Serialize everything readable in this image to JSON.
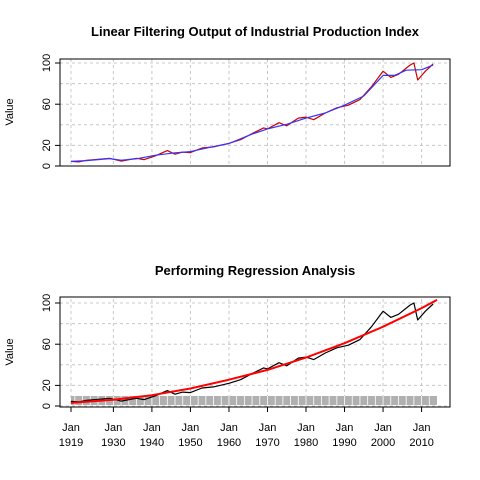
{
  "chart_data": [
    {
      "type": "line",
      "title": "Linear Filtering Output of  Industrial Production Index",
      "ylabel": "Value",
      "xlabel": "",
      "xlim": [
        1919,
        2014
      ],
      "ylim": [
        0,
        104
      ],
      "yticks": [
        0,
        20,
        60,
        100
      ],
      "grid": true,
      "series": [
        {
          "color": "#cc0000",
          "x": [
            1919,
            1921,
            1923,
            1926,
            1929,
            1932,
            1936,
            1938,
            1941,
            1944,
            1946,
            1948,
            1950,
            1953,
            1956,
            1960,
            1963,
            1966,
            1969,
            1970,
            1973,
            1975,
            1978,
            1980,
            1982,
            1985,
            1988,
            1991,
            1994,
            1997,
            2000,
            2002,
            2004,
            2007,
            2008,
            2009,
            2011,
            2013
          ],
          "values": [
            4.5,
            4.0,
            5.5,
            6.5,
            7.5,
            4.8,
            7.5,
            6.2,
            10.0,
            15.0,
            11.5,
            13.5,
            13.0,
            17.5,
            18.5,
            22.0,
            25.5,
            31.5,
            37.0,
            36.0,
            42.0,
            39.0,
            46.5,
            47.5,
            45.0,
            51.5,
            56.5,
            59.0,
            64.5,
            77.0,
            92.0,
            86.0,
            89.0,
            98.0,
            100.0,
            83.5,
            92.0,
            99.0
          ]
        },
        {
          "color": "#3333ff",
          "x": [
            1919,
            1923,
            1929,
            1932,
            1936,
            1941,
            1946,
            1950,
            1956,
            1960,
            1966,
            1970,
            1975,
            1980,
            1985,
            1990,
            1995,
            2000,
            2003,
            2006,
            2010,
            2013
          ],
          "values": [
            4.5,
            5.2,
            7.2,
            5.6,
            7.0,
            10.5,
            12.8,
            14.0,
            18.8,
            21.8,
            31.0,
            36.0,
            40.5,
            46.5,
            51.5,
            59.0,
            68.0,
            88.0,
            88.0,
            93.0,
            93.5,
            98.0
          ]
        }
      ]
    },
    {
      "type": "line",
      "title": "Performing Regression Analysis",
      "ylabel": "Value",
      "xlabel": "",
      "xlim": [
        1919,
        2014
      ],
      "ylim": [
        0,
        104
      ],
      "yticks": [
        0,
        20,
        60,
        100
      ],
      "xtick_labels": [
        {
          "month": "Jan",
          "year": "1919"
        },
        {
          "month": "Jan",
          "year": "1930"
        },
        {
          "month": "Jan",
          "year": "1940"
        },
        {
          "month": "Jan",
          "year": "1950"
        },
        {
          "month": "Jan",
          "year": "1960"
        },
        {
          "month": "Jan",
          "year": "1970"
        },
        {
          "month": "Jan",
          "year": "1980"
        },
        {
          "month": "Jan",
          "year": "1990"
        },
        {
          "month": "Jan",
          "year": "2000"
        },
        {
          "month": "Jan",
          "year": "2010"
        }
      ],
      "grid": true,
      "series": [
        {
          "color": "#000000",
          "x": [
            1919,
            1921,
            1923,
            1926,
            1929,
            1932,
            1936,
            1938,
            1941,
            1944,
            1946,
            1948,
            1950,
            1953,
            1956,
            1960,
            1963,
            1966,
            1969,
            1970,
            1973,
            1975,
            1978,
            1980,
            1982,
            1985,
            1988,
            1991,
            1994,
            1997,
            2000,
            2002,
            2004,
            2007,
            2008,
            2009,
            2011,
            2013
          ],
          "values": [
            4.5,
            4.0,
            5.5,
            6.5,
            7.5,
            4.8,
            7.5,
            6.2,
            10.0,
            15.0,
            11.5,
            13.5,
            13.0,
            17.5,
            18.5,
            22.0,
            25.5,
            31.5,
            37.0,
            36.0,
            42.0,
            39.0,
            46.5,
            47.5,
            45.0,
            51.5,
            56.5,
            59.0,
            64.5,
            77.0,
            92.0,
            86.0,
            89.0,
            98.0,
            100.0,
            83.5,
            92.0,
            99.0
          ]
        },
        {
          "color": "#ff0000",
          "x": [
            1919,
            1930,
            1940,
            1950,
            1960,
            1970,
            1980,
            1990,
            2000,
            2010,
            2014
          ],
          "values": [
            3.0,
            6.0,
            10.5,
            17.0,
            25.5,
            35.0,
            47.0,
            61.0,
            77.0,
            95.0,
            103.0
          ]
        }
      ]
    }
  ]
}
